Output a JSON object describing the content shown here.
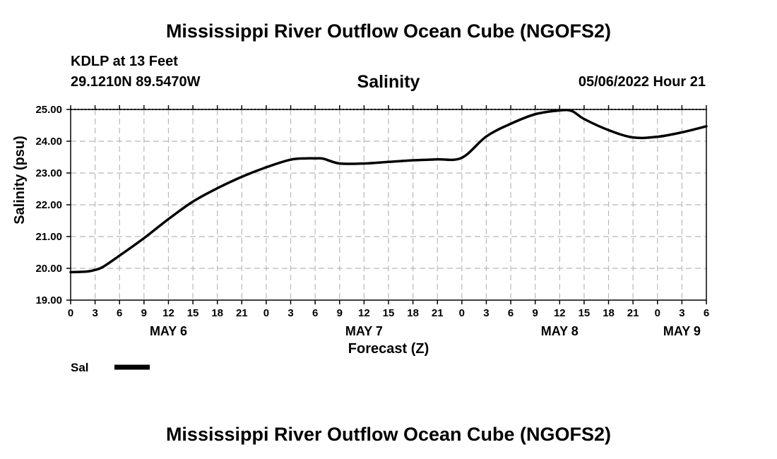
{
  "page": {
    "title_top": "Mississippi River Outflow Ocean Cube (NGOFS2)",
    "title_bottom": "Mississippi River Outflow Ocean Cube (NGOFS2)",
    "station_name": "KDLP at 13 Feet",
    "station_coords": "29.1210N  89.5470W",
    "variable": "Salinity",
    "timestamp": "05/06/2022 Hour 21"
  },
  "legend": {
    "label": "Sal"
  },
  "chart_data": {
    "type": "line",
    "title": "Salinity",
    "xlabel": "Forecast (Z)",
    "ylabel": "Salinity (psu)",
    "xlim": [
      0,
      78
    ],
    "ylim": [
      19.0,
      25.0
    ],
    "yticks": [
      19.0,
      20.0,
      21.0,
      22.0,
      23.0,
      24.0,
      25.0
    ],
    "ytick_labels": [
      "19.00",
      "20.00",
      "21.00",
      "22.00",
      "23.00",
      "24.00",
      "25.00"
    ],
    "xticks": [
      0,
      3,
      6,
      9,
      12,
      15,
      18,
      21,
      24,
      27,
      30,
      33,
      36,
      39,
      42,
      45,
      48,
      51,
      54,
      57,
      60,
      63,
      66,
      69,
      72,
      75,
      78
    ],
    "xtick_labels": [
      "0",
      "3",
      "6",
      "9",
      "12",
      "15",
      "18",
      "21",
      "0",
      "3",
      "6",
      "9",
      "12",
      "15",
      "18",
      "21",
      "0",
      "3",
      "6",
      "9",
      "12",
      "15",
      "18",
      "21",
      "0",
      "3",
      "6"
    ],
    "day_labels": [
      {
        "label": "MAY 6",
        "x": 12
      },
      {
        "label": "MAY 7",
        "x": 36
      },
      {
        "label": "MAY 8",
        "x": 60
      },
      {
        "label": "MAY 9",
        "x": 75
      }
    ],
    "grid": true,
    "series": [
      {
        "name": "Sal",
        "color": "#000000",
        "x": [
          0,
          2,
          3,
          4,
          6,
          9,
          12,
          15,
          18,
          21,
          24,
          27,
          29,
          30,
          31,
          33,
          36,
          39,
          42,
          45,
          48,
          51,
          54,
          57,
          60,
          61.5,
          63,
          66,
          69,
          72,
          75,
          78
        ],
        "y": [
          19.88,
          19.9,
          19.95,
          20.05,
          20.4,
          20.95,
          21.55,
          22.1,
          22.52,
          22.88,
          23.18,
          23.42,
          23.46,
          23.46,
          23.45,
          23.3,
          23.3,
          23.35,
          23.4,
          23.43,
          23.48,
          24.15,
          24.55,
          24.85,
          24.97,
          24.95,
          24.7,
          24.35,
          24.12,
          24.14,
          24.28,
          24.47
        ]
      }
    ]
  }
}
